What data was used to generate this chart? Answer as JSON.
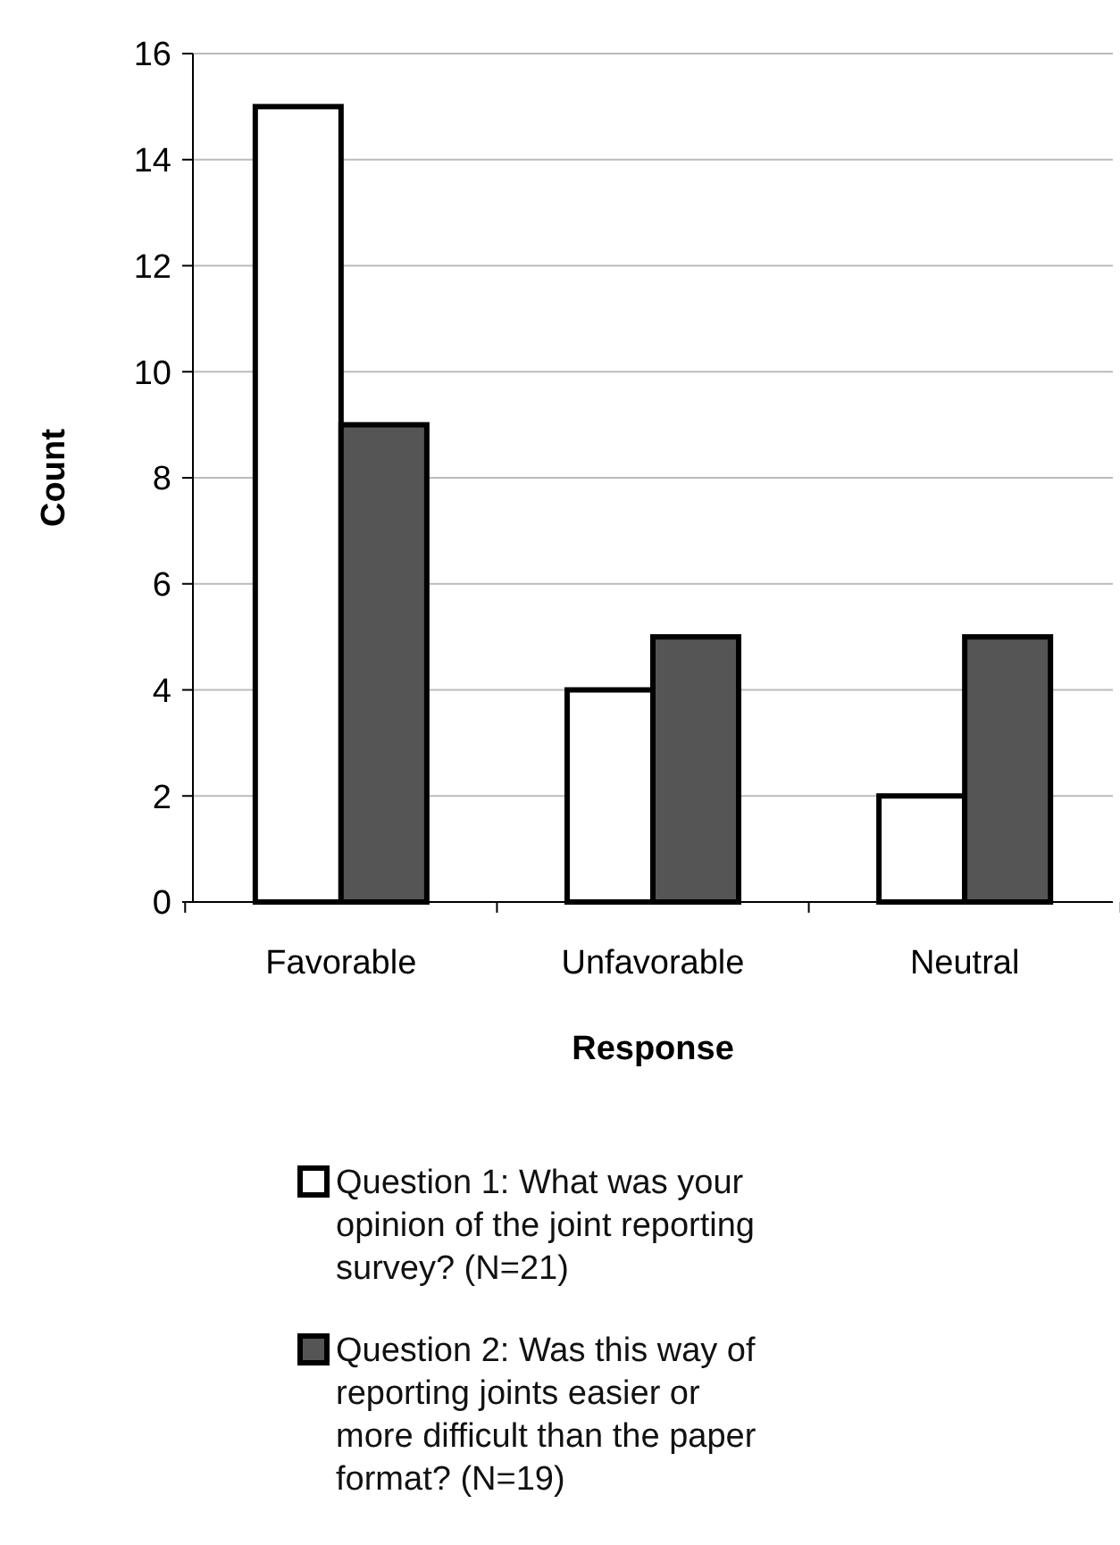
{
  "chart_data": {
    "type": "bar",
    "xlabel": "Response",
    "ylabel": "Count",
    "categories": [
      "Favorable",
      "Unfavorable",
      "Neutral"
    ],
    "series": [
      {
        "name": "Question 1: What was your opinion of the joint reporting survey? (N=21)",
        "color": "#ffffff",
        "values": [
          15,
          4,
          2
        ]
      },
      {
        "name": "Question 2: Was this way of reporting joints easier or more difficult than the paper format? (N=19)",
        "color": "#555555",
        "values": [
          9,
          5,
          5
        ]
      }
    ],
    "ylim": [
      0,
      16
    ],
    "yticks": [
      0,
      2,
      4,
      6,
      8,
      10,
      12,
      14,
      16
    ],
    "grid": "y",
    "legend": "bottom"
  }
}
